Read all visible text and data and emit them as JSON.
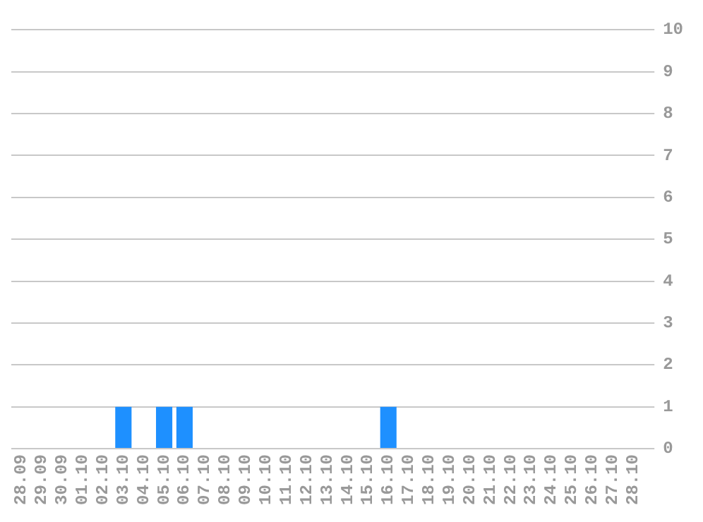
{
  "chart_data": {
    "type": "bar",
    "categories": [
      "28.09",
      "29.09",
      "30.09",
      "01.10",
      "02.10",
      "03.10",
      "04.10",
      "05.10",
      "06.10",
      "07.10",
      "08.10",
      "09.10",
      "10.10",
      "11.10",
      "12.10",
      "13.10",
      "14.10",
      "15.10",
      "16.10",
      "17.10",
      "18.10",
      "19.10",
      "20.10",
      "21.10",
      "22.10",
      "23.10",
      "24.10",
      "25.10",
      "26.10",
      "27.10",
      "28.10"
    ],
    "values": [
      0,
      0,
      0,
      0,
      0,
      1,
      0,
      1,
      1,
      0,
      0,
      0,
      0,
      0,
      0,
      0,
      0,
      0,
      1,
      0,
      0,
      0,
      0,
      0,
      0,
      0,
      0,
      0,
      0,
      0,
      0
    ],
    "color": "#1e90ff",
    "ylim": [
      0,
      10
    ],
    "yticks": [
      0,
      1,
      2,
      3,
      4,
      5,
      6,
      7,
      8,
      9,
      10
    ],
    "grid": "y",
    "legend": false
  }
}
